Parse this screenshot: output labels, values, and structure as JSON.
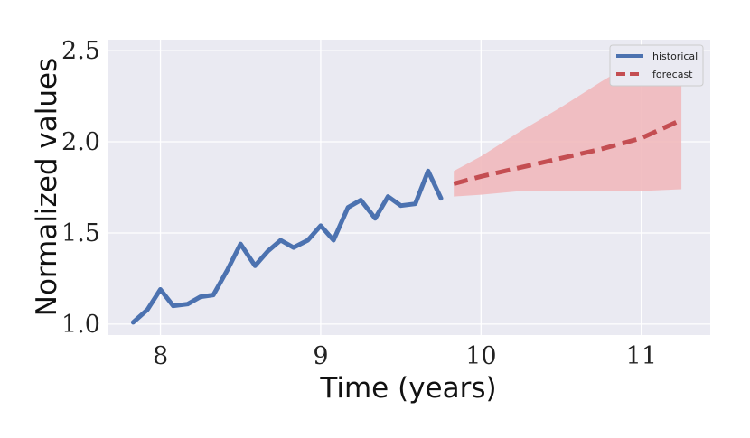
{
  "chart_data": {
    "type": "line",
    "xlabel": "Time (years)",
    "ylabel": "Normalized values",
    "xlim": [
      7.67,
      11.43
    ],
    "ylim": [
      0.94,
      2.56
    ],
    "xticks": [
      8,
      9,
      10,
      11
    ],
    "xtick_labels": [
      "8",
      "9",
      "10",
      "11"
    ],
    "yticks": [
      1.0,
      1.5,
      2.0,
      2.5
    ],
    "ytick_labels": [
      "1.0",
      "1.5",
      "2.0",
      "2.5"
    ],
    "grid": true,
    "legend_position": "top-right",
    "series": [
      {
        "name": "historical",
        "color": "#4c72b0",
        "style": "solid",
        "x": [
          7.83,
          7.92,
          8.0,
          8.08,
          8.17,
          8.25,
          8.33,
          8.42,
          8.5,
          8.59,
          8.67,
          8.75,
          8.83,
          8.92,
          9.0,
          9.08,
          9.17,
          9.25,
          9.34,
          9.42,
          9.5,
          9.59,
          9.67,
          9.75
        ],
        "y": [
          1.01,
          1.08,
          1.19,
          1.1,
          1.11,
          1.15,
          1.16,
          1.3,
          1.44,
          1.32,
          1.4,
          1.46,
          1.42,
          1.46,
          1.54,
          1.46,
          1.64,
          1.68,
          1.58,
          1.7,
          1.65,
          1.66,
          1.84,
          1.69
        ]
      },
      {
        "name": "forecast",
        "color": "#c44e52",
        "style": "dashed",
        "x": [
          9.83,
          10.0,
          10.25,
          10.5,
          10.75,
          11.0,
          11.25
        ],
        "y": [
          1.77,
          1.81,
          1.86,
          1.91,
          1.96,
          2.02,
          2.12
        ]
      }
    ],
    "band": {
      "color": "#f1b9bd",
      "x": [
        9.83,
        10.0,
        10.25,
        10.5,
        10.75,
        11.0,
        11.25
      ],
      "lower": [
        1.7,
        1.71,
        1.73,
        1.73,
        1.73,
        1.73,
        1.74
      ],
      "upper": [
        1.84,
        1.92,
        2.06,
        2.19,
        2.33,
        2.46,
        2.46
      ]
    }
  }
}
